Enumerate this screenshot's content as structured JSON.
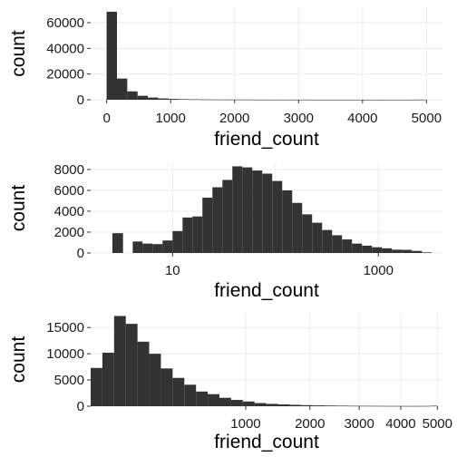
{
  "chart_data": [
    {
      "type": "bar",
      "subtype": "histogram",
      "scale_x": "linear",
      "xlabel": "friend_count",
      "ylabel": "count",
      "xlim": [
        -250,
        5250
      ],
      "ylim": [
        0,
        72000
      ],
      "x_ticks": [
        {
          "v": 0,
          "label": "0"
        },
        {
          "v": 1000,
          "label": "1000"
        },
        {
          "v": 2000,
          "label": "2000"
        },
        {
          "v": 3000,
          "label": "3000"
        },
        {
          "v": 4000,
          "label": "4000"
        },
        {
          "v": 5000,
          "label": "5000"
        }
      ],
      "y_ticks": [
        {
          "v": 0,
          "label": "0"
        },
        {
          "v": 20000,
          "label": "20000"
        },
        {
          "v": 40000,
          "label": "40000"
        },
        {
          "v": 60000,
          "label": "60000"
        }
      ],
      "bins": [
        {
          "x0": 0,
          "x1": 161,
          "value": 68500
        },
        {
          "x0": 161,
          "x1": 322,
          "value": 16500
        },
        {
          "x0": 322,
          "x1": 483,
          "value": 6500
        },
        {
          "x0": 483,
          "x1": 644,
          "value": 3100
        },
        {
          "x0": 644,
          "x1": 805,
          "value": 1700
        },
        {
          "x0": 805,
          "x1": 966,
          "value": 1000
        },
        {
          "x0": 966,
          "x1": 1127,
          "value": 650
        },
        {
          "x0": 1127,
          "x1": 1288,
          "value": 450
        },
        {
          "x0": 1288,
          "x1": 1449,
          "value": 320
        },
        {
          "x0": 1449,
          "x1": 1610,
          "value": 240
        },
        {
          "x0": 1610,
          "x1": 1771,
          "value": 180
        },
        {
          "x0": 1771,
          "x1": 1932,
          "value": 140
        },
        {
          "x0": 1932,
          "x1": 2093,
          "value": 110
        },
        {
          "x0": 2093,
          "x1": 2254,
          "value": 90
        },
        {
          "x0": 2254,
          "x1": 2415,
          "value": 75
        },
        {
          "x0": 2415,
          "x1": 2576,
          "value": 65
        },
        {
          "x0": 2576,
          "x1": 2737,
          "value": 55
        },
        {
          "x0": 2737,
          "x1": 2898,
          "value": 50
        },
        {
          "x0": 2898,
          "x1": 3059,
          "value": 45
        },
        {
          "x0": 3059,
          "x1": 3220,
          "value": 40
        },
        {
          "x0": 3220,
          "x1": 3381,
          "value": 35
        },
        {
          "x0": 3381,
          "x1": 3542,
          "value": 30
        },
        {
          "x0": 3542,
          "x1": 3703,
          "value": 30
        },
        {
          "x0": 3703,
          "x1": 3864,
          "value": 25
        },
        {
          "x0": 3864,
          "x1": 4025,
          "value": 25
        },
        {
          "x0": 4025,
          "x1": 4186,
          "value": 20
        },
        {
          "x0": 4186,
          "x1": 4347,
          "value": 20
        },
        {
          "x0": 4347,
          "x1": 4508,
          "value": 20
        },
        {
          "x0": 4508,
          "x1": 4669,
          "value": 20
        },
        {
          "x0": 4669,
          "x1": 4830,
          "value": 25
        },
        {
          "x0": 4830,
          "x1": 4991,
          "value": 80
        }
      ]
    },
    {
      "type": "bar",
      "subtype": "histogram",
      "scale_x": "log10",
      "xlabel": "friend_count",
      "ylabel": "count",
      "xlim": [
        1.6,
        4200
      ],
      "ylim": [
        0,
        8600
      ],
      "x_ticks": [
        {
          "v": 10,
          "label": "10"
        },
        {
          "v": 1000,
          "label": "1000"
        }
      ],
      "x_minor": [
        100
      ],
      "y_ticks": [
        {
          "v": 0,
          "label": "0"
        },
        {
          "v": 2000,
          "label": "2000"
        },
        {
          "v": 4000,
          "label": "4000"
        },
        {
          "v": 6000,
          "label": "6000"
        },
        {
          "v": 8000,
          "label": "8000"
        }
      ],
      "bins": [
        {
          "x0": 2.6,
          "x1": 3.3,
          "value": 1900
        },
        {
          "x0": 3.3,
          "x1": 4.1,
          "value": 0
        },
        {
          "x0": 4.1,
          "x1": 5.1,
          "value": 1100
        },
        {
          "x0": 5.1,
          "x1": 6.4,
          "value": 900
        },
        {
          "x0": 6.4,
          "x1": 8.0,
          "value": 850
        },
        {
          "x0": 8.0,
          "x1": 10.0,
          "value": 1200
        },
        {
          "x0": 10.0,
          "x1": 12.5,
          "value": 2100
        },
        {
          "x0": 12.5,
          "x1": 15.6,
          "value": 3400
        },
        {
          "x0": 15.6,
          "x1": 19.5,
          "value": 3500
        },
        {
          "x0": 19.5,
          "x1": 24.4,
          "value": 5300
        },
        {
          "x0": 24.4,
          "x1": 30.5,
          "value": 6300
        },
        {
          "x0": 30.5,
          "x1": 38.1,
          "value": 7000
        },
        {
          "x0": 38.1,
          "x1": 47.6,
          "value": 8300
        },
        {
          "x0": 47.6,
          "x1": 59.5,
          "value": 8200
        },
        {
          "x0": 59.5,
          "x1": 74.4,
          "value": 7900
        },
        {
          "x0": 74.4,
          "x1": 93.0,
          "value": 7600
        },
        {
          "x0": 93.0,
          "x1": 116.3,
          "value": 6900
        },
        {
          "x0": 116.3,
          "x1": 145.4,
          "value": 6000
        },
        {
          "x0": 145.4,
          "x1": 181.7,
          "value": 4800
        },
        {
          "x0": 181.7,
          "x1": 227.1,
          "value": 3700
        },
        {
          "x0": 227.1,
          "x1": 283.9,
          "value": 2900
        },
        {
          "x0": 283.9,
          "x1": 354.9,
          "value": 2200
        },
        {
          "x0": 354.9,
          "x1": 443.6,
          "value": 1700
        },
        {
          "x0": 443.6,
          "x1": 554.5,
          "value": 1300
        },
        {
          "x0": 554.5,
          "x1": 693.1,
          "value": 900
        },
        {
          "x0": 693.1,
          "x1": 866.4,
          "value": 700
        },
        {
          "x0": 866.4,
          "x1": 1083,
          "value": 550
        },
        {
          "x0": 1083,
          "x1": 1354,
          "value": 450
        },
        {
          "x0": 1354,
          "x1": 1692,
          "value": 320
        },
        {
          "x0": 1692,
          "x1": 2115,
          "value": 300
        },
        {
          "x0": 2115,
          "x1": 2644,
          "value": 200
        },
        {
          "x0": 2644,
          "x1": 3305,
          "value": 60
        }
      ]
    },
    {
      "type": "bar",
      "subtype": "histogram",
      "scale_x": "sqrt",
      "xlabel": "friend_count",
      "ylabel": "count",
      "xlim": [
        -1.2,
        5150
      ],
      "ylim": [
        0,
        17800
      ],
      "x_ticks": [
        {
          "v": 1000,
          "label": "1000"
        },
        {
          "v": 2000,
          "label": "2000"
        },
        {
          "v": 3000,
          "label": "3000"
        },
        {
          "v": 4000,
          "label": "4000"
        },
        {
          "v": 5000,
          "label": "5000"
        }
      ],
      "y_ticks": [
        {
          "v": 0,
          "label": "0"
        },
        {
          "v": 5000,
          "label": "5000"
        },
        {
          "v": 10000,
          "label": "10000"
        },
        {
          "v": 15000,
          "label": "15000"
        }
      ],
      "bins": [
        {
          "x0": 0,
          "x1": 5.7,
          "value": 7300
        },
        {
          "x0": 5.7,
          "x1": 22.8,
          "value": 10200
        },
        {
          "x0": 22.8,
          "x1": 51.3,
          "value": 17200
        },
        {
          "x0": 51.3,
          "x1": 91.2,
          "value": 15700
        },
        {
          "x0": 91.2,
          "x1": 142.5,
          "value": 12300
        },
        {
          "x0": 142.5,
          "x1": 205.2,
          "value": 10000
        },
        {
          "x0": 205.2,
          "x1": 279.3,
          "value": 7200
        },
        {
          "x0": 279.3,
          "x1": 364.8,
          "value": 5400
        },
        {
          "x0": 364.8,
          "x1": 461.7,
          "value": 4100
        },
        {
          "x0": 461.7,
          "x1": 570,
          "value": 2800
        },
        {
          "x0": 570,
          "x1": 689.7,
          "value": 2300
        },
        {
          "x0": 689.7,
          "x1": 820.8,
          "value": 1600
        },
        {
          "x0": 820.8,
          "x1": 963.3,
          "value": 1200
        },
        {
          "x0": 963.3,
          "x1": 1117.2,
          "value": 900
        },
        {
          "x0": 1117.2,
          "x1": 1282.5,
          "value": 600
        },
        {
          "x0": 1282.5,
          "x1": 1459.2,
          "value": 450
        },
        {
          "x0": 1459.2,
          "x1": 1647.3,
          "value": 350
        },
        {
          "x0": 1647.3,
          "x1": 1846.8,
          "value": 270
        },
        {
          "x0": 1846.8,
          "x1": 2057.7,
          "value": 200
        },
        {
          "x0": 2057.7,
          "x1": 2280,
          "value": 160
        },
        {
          "x0": 2280,
          "x1": 2513.7,
          "value": 130
        },
        {
          "x0": 2513.7,
          "x1": 2758.8,
          "value": 100
        },
        {
          "x0": 2758.8,
          "x1": 3015.3,
          "value": 80
        },
        {
          "x0": 3015.3,
          "x1": 3283.2,
          "value": 70
        },
        {
          "x0": 3283.2,
          "x1": 3562.5,
          "value": 60
        },
        {
          "x0": 3562.5,
          "x1": 3853.2,
          "value": 50
        },
        {
          "x0": 3853.2,
          "x1": 4155.3,
          "value": 45
        },
        {
          "x0": 4155.3,
          "x1": 4468.8,
          "value": 40
        },
        {
          "x0": 4468.8,
          "x1": 4793.7,
          "value": 50
        },
        {
          "x0": 4793.7,
          "x1": 5000,
          "value": 90
        }
      ]
    }
  ]
}
